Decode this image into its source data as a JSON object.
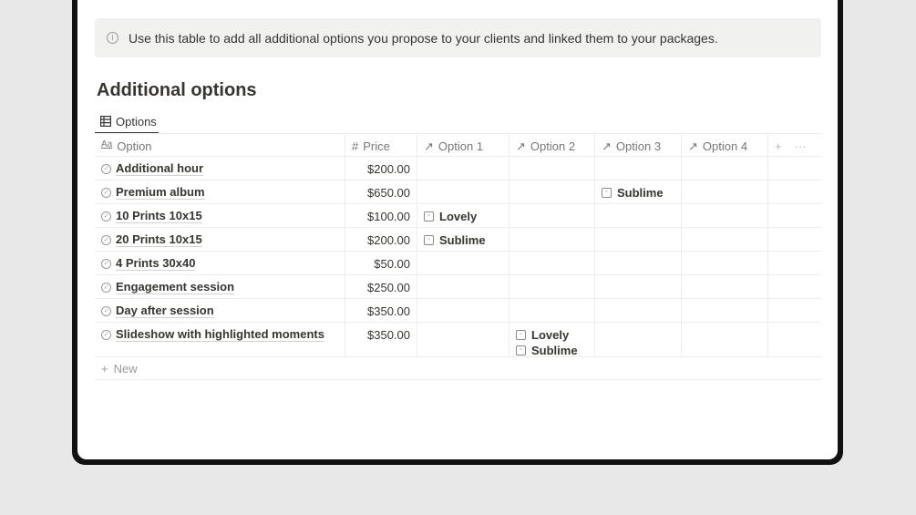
{
  "callout": {
    "icon": "info-icon",
    "text": "Use this table to add all additional options you propose to your clients and linked them to your packages."
  },
  "title": "Additional options",
  "view_tab": {
    "icon": "table-icon",
    "label": "Options"
  },
  "columns": [
    {
      "icon": "text-icon",
      "glyph": "Aa",
      "label": "Option"
    },
    {
      "icon": "number-icon",
      "glyph": "#",
      "label": "Price"
    },
    {
      "icon": "relation-arrow-icon",
      "glyph": "↗",
      "label": "Option 1"
    },
    {
      "icon": "relation-arrow-icon",
      "glyph": "↗",
      "label": "Option 2"
    },
    {
      "icon": "relation-arrow-icon",
      "glyph": "↗",
      "label": "Option 3"
    },
    {
      "icon": "relation-arrow-icon",
      "glyph": "↗",
      "label": "Option 4"
    }
  ],
  "add_column": "+",
  "more": "···",
  "rows": [
    {
      "option": "Additional hour",
      "price": "$200.00",
      "o1": [],
      "o2": [],
      "o3": [],
      "o4": []
    },
    {
      "option": "Premium album",
      "price": "$650.00",
      "o1": [],
      "o2": [],
      "o3": [
        "Sublime"
      ],
      "o4": []
    },
    {
      "option": "10 Prints 10x15",
      "price": "$100.00",
      "o1": [
        "Lovely"
      ],
      "o2": [],
      "o3": [],
      "o4": []
    },
    {
      "option": "20 Prints 10x15",
      "price": "$200.00",
      "o1": [
        "Sublime"
      ],
      "o2": [],
      "o3": [],
      "o4": []
    },
    {
      "option": "4 Prints 30x40",
      "price": "$50.00",
      "o1": [],
      "o2": [],
      "o3": [],
      "o4": []
    },
    {
      "option": "Engagement session",
      "price": "$250.00",
      "o1": [],
      "o2": [],
      "o3": [],
      "o4": []
    },
    {
      "option": "Day after session",
      "price": "$350.00",
      "o1": [],
      "o2": [],
      "o3": [],
      "o4": []
    },
    {
      "option": "Slideshow with highlighted moments",
      "price": "$350.00",
      "o1": [],
      "o2": [
        "Lovely",
        "Sublime"
      ],
      "o3": [],
      "o4": []
    }
  ],
  "new_label": "New"
}
